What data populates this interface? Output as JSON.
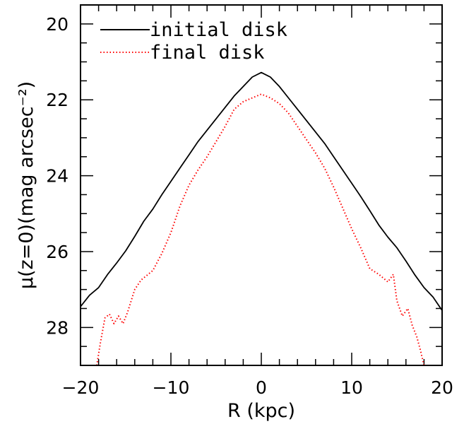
{
  "chart_data": {
    "type": "line",
    "xlabel": "R (kpc)",
    "ylabel": "μ(z=0)(mag arcsec⁻²)",
    "xlim": [
      -20,
      20
    ],
    "ylim": [
      29.0,
      19.5
    ],
    "y_inverted": true,
    "x_ticks": [
      -20,
      -10,
      0,
      10,
      20
    ],
    "x_tick_labels": [
      "−20",
      "−10",
      "0",
      "10",
      "20"
    ],
    "y_ticks": [
      20,
      22,
      24,
      26,
      28
    ],
    "y_tick_labels": [
      "20",
      "22",
      "24",
      "26",
      "28"
    ],
    "legend_position": "top-left",
    "series": [
      {
        "name": "initial disk",
        "style": "solid",
        "color": "#000000",
        "x": [
          -20,
          -19,
          -18,
          -17,
          -16,
          -15,
          -14,
          -13,
          -12,
          -11,
          -10,
          -9,
          -8,
          -7,
          -6,
          -5,
          -4,
          -3,
          -2,
          -1,
          0,
          1,
          2,
          3,
          4,
          5,
          6,
          7,
          8,
          9,
          10,
          11,
          12,
          13,
          14,
          15,
          16,
          17,
          18,
          19,
          20
        ],
        "y": [
          27.45,
          27.15,
          26.95,
          26.6,
          26.3,
          25.98,
          25.6,
          25.2,
          24.88,
          24.5,
          24.15,
          23.8,
          23.45,
          23.1,
          22.8,
          22.5,
          22.2,
          21.9,
          21.65,
          21.4,
          21.28,
          21.4,
          21.65,
          21.95,
          22.25,
          22.55,
          22.85,
          23.15,
          23.5,
          23.85,
          24.2,
          24.55,
          24.92,
          25.3,
          25.62,
          25.9,
          26.25,
          26.62,
          26.95,
          27.2,
          27.55
        ]
      },
      {
        "name": "final disk",
        "style": "dotted",
        "color": "#ff0000",
        "x": [
          -18.2,
          -17.8,
          -17.3,
          -16.8,
          -16.3,
          -15.8,
          -15.3,
          -14.8,
          -14.0,
          -13.3,
          -12.0,
          -11.0,
          -10.0,
          -9.0,
          -8.0,
          -7.0,
          -6.0,
          -5.0,
          -4.0,
          -3.0,
          -2.0,
          -1.0,
          0.0,
          1.0,
          2.0,
          3.0,
          4.0,
          5.0,
          6.0,
          7.0,
          8.0,
          9.0,
          10.0,
          11.0,
          12.0,
          13.0,
          14.0,
          14.6,
          15.0,
          15.6,
          16.2,
          16.7,
          17.2,
          17.6,
          18.0
        ],
        "y": [
          29.0,
          28.4,
          27.75,
          27.65,
          27.9,
          27.7,
          27.9,
          27.6,
          27.0,
          26.75,
          26.5,
          26.05,
          25.5,
          24.8,
          24.25,
          23.85,
          23.5,
          23.1,
          22.7,
          22.25,
          22.05,
          21.95,
          21.85,
          21.95,
          22.1,
          22.35,
          22.7,
          23.05,
          23.4,
          23.8,
          24.3,
          24.85,
          25.4,
          25.9,
          26.45,
          26.6,
          26.8,
          26.6,
          27.3,
          27.7,
          27.5,
          27.95,
          28.25,
          28.6,
          29.0
        ]
      }
    ]
  }
}
